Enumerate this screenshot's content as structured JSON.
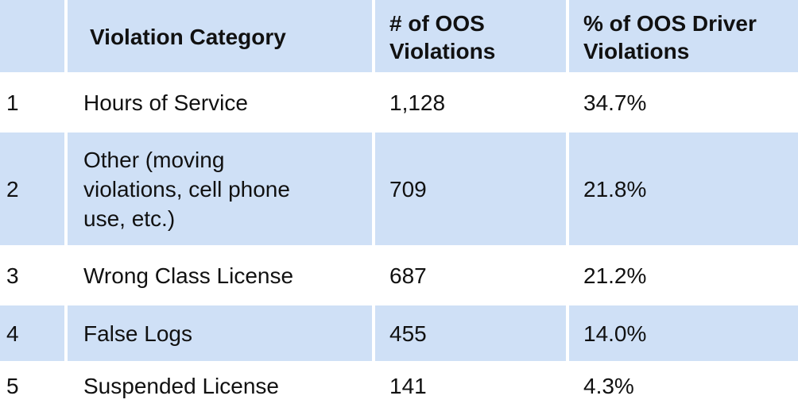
{
  "chart_data": {
    "type": "table",
    "columns": [
      "",
      "Violation Category",
      "# of OOS Violations",
      "% of OOS Driver Violations"
    ],
    "header": {
      "rank": "",
      "category": "Violation Category",
      "num_line1": "# of OOS",
      "num_line2": "Violations",
      "pct_line1": "% of OOS Driver",
      "pct_line2": "Violations"
    },
    "rows": [
      {
        "rank": "1",
        "category": "Hours of Service",
        "violations": "1,128",
        "percent": "34.7%"
      },
      {
        "rank": "2",
        "category_lines": [
          "Other (moving",
          "violations, cell phone",
          "use, etc.)"
        ],
        "category": "Other (moving violations, cell phone use, etc.)",
        "violations": "709",
        "percent": "21.8%"
      },
      {
        "rank": "3",
        "category": "Wrong Class License",
        "violations": "687",
        "percent": "21.2%"
      },
      {
        "rank": "4",
        "category": "False Logs",
        "violations": "455",
        "percent": "14.0%"
      },
      {
        "rank": "5",
        "category": "Suspended License",
        "violations": "141",
        "percent": "4.3%"
      }
    ],
    "row_shading": [
      "white",
      "blue",
      "white",
      "blue",
      "white"
    ],
    "colors": {
      "header_bg": "#cfe0f6",
      "band_bg": "#cfe0f6",
      "text": "#111111"
    }
  }
}
